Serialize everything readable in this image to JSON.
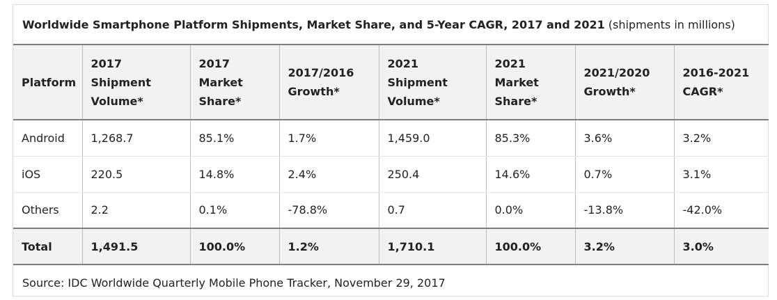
{
  "caption": {
    "title": "Worldwide Smartphone Platform Shipments, Market Share, and 5-Year CAGR, 2017 and 2021",
    "subtitle": "(shipments in millions)"
  },
  "table": {
    "headers": [
      "Platform",
      "2017 Shipment Volume*",
      "2017 Market Share*",
      "2017/2016 Growth*",
      "2021 Shipment Volume*",
      "2021 Market Share*",
      "2021/2020 Growth*",
      "2016-2021 CAGR*"
    ],
    "rows": [
      [
        "Android",
        "1,268.7",
        "85.1%",
        "1.7%",
        "1,459.0",
        "85.3%",
        "3.6%",
        "3.2%"
      ],
      [
        "iOS",
        "220.5",
        "14.8%",
        "2.4%",
        "250.4",
        "14.6%",
        "0.7%",
        "3.1%"
      ],
      [
        "Others",
        "2.2",
        "0.1%",
        "-78.8%",
        "0.7",
        "0.0%",
        "-13.8%",
        "-42.0%"
      ]
    ],
    "total": [
      "Total",
      "1,491.5",
      "100.0%",
      "1.2%",
      "1,710.1",
      "100.0%",
      "3.2%",
      "3.0%"
    ]
  },
  "source": "Source: IDC Worldwide Quarterly Mobile Phone Tracker, November 29, 2017"
}
